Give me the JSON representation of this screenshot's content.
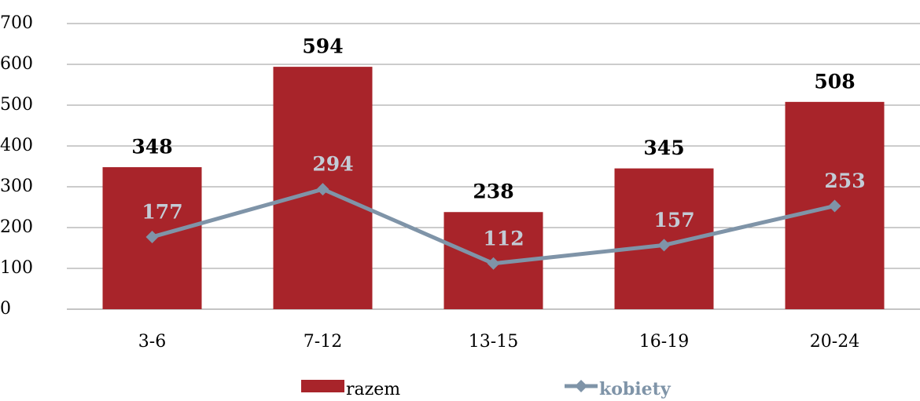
{
  "chart_data": {
    "type": "bar",
    "categories": [
      "3-6",
      "7-12",
      "13-15",
      "16-19",
      "20-24"
    ],
    "series": [
      {
        "name": "razem",
        "type": "bar",
        "color": "#a8242a",
        "values": [
          348,
          594,
          238,
          345,
          508
        ]
      },
      {
        "name": "kobiety",
        "type": "line",
        "color": "#7f94a8",
        "values": [
          177,
          294,
          112,
          157,
          253
        ]
      }
    ],
    "ylim": [
      0,
      700
    ],
    "yticks": [
      0,
      100,
      200,
      300,
      400,
      500,
      600,
      700
    ],
    "grid": true,
    "legend": "bottom"
  }
}
